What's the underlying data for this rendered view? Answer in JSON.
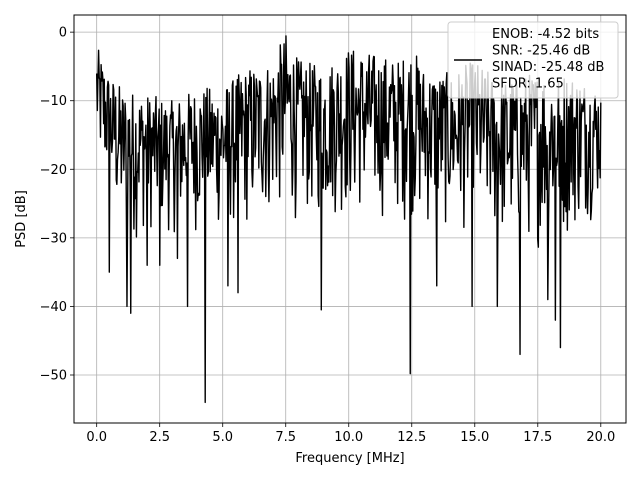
{
  "chart_data": {
    "type": "line",
    "title": "",
    "xlabel": "Frequency [MHz]",
    "ylabel": "PSD [dB]",
    "xlim": [
      -0.9,
      21.0
    ],
    "ylim": [
      -57,
      2.5
    ],
    "grid": true,
    "xticks": [
      0.0,
      2.5,
      5.0,
      7.5,
      10.0,
      12.5,
      15.0,
      17.5,
      20.0
    ],
    "xtick_labels": [
      "0.0",
      "2.5",
      "5.0",
      "7.5",
      "10.0",
      "12.5",
      "15.0",
      "17.5",
      "20.0"
    ],
    "yticks": [
      0,
      -10,
      -20,
      -30,
      -40,
      -50
    ],
    "ytick_labels": [
      "0",
      "−10",
      "−20",
      "−30",
      "−40",
      "−50"
    ],
    "series": [
      {
        "color": "#000000",
        "x_range": [
          0.0,
          20.0
        ],
        "n_points": 800,
        "upper_envelope": [
          [
            0.0,
            -2
          ],
          [
            0.5,
            -6
          ],
          [
            1.0,
            -8
          ],
          [
            2.0,
            -9
          ],
          [
            3.0,
            -10
          ],
          [
            4.0,
            -8
          ],
          [
            5.0,
            -8
          ],
          [
            6.0,
            -5
          ],
          [
            7.0,
            -4
          ],
          [
            7.5,
            0
          ],
          [
            8.0,
            -4
          ],
          [
            9.0,
            -5
          ],
          [
            10.0,
            -2
          ],
          [
            11.0,
            -3
          ],
          [
            12.0,
            -4
          ],
          [
            12.5,
            -2
          ],
          [
            13.0,
            -5
          ],
          [
            14.0,
            -6
          ],
          [
            15.0,
            -4
          ],
          [
            16.0,
            -7
          ],
          [
            17.0,
            -6
          ],
          [
            18.0,
            -5
          ],
          [
            19.0,
            -6
          ],
          [
            20.0,
            -8
          ]
        ],
        "lower_envelope": [
          [
            0.0,
            -20
          ],
          [
            1.0,
            -32
          ],
          [
            2.0,
            -30
          ],
          [
            3.0,
            -30
          ],
          [
            4.0,
            -30
          ],
          [
            5.0,
            -30
          ],
          [
            6.0,
            -30
          ],
          [
            7.0,
            -28
          ],
          [
            8.0,
            -28
          ],
          [
            9.0,
            -28
          ],
          [
            10.0,
            -28
          ],
          [
            11.0,
            -28
          ],
          [
            12.0,
            -28
          ],
          [
            13.0,
            -30
          ],
          [
            14.0,
            -30
          ],
          [
            15.0,
            -30
          ],
          [
            16.0,
            -32
          ],
          [
            17.0,
            -32
          ],
          [
            18.0,
            -32
          ],
          [
            19.0,
            -30
          ],
          [
            20.0,
            -26
          ]
        ],
        "deep_dips": [
          [
            0.5,
            -35
          ],
          [
            1.2,
            -40
          ],
          [
            1.35,
            -41
          ],
          [
            2.0,
            -34
          ],
          [
            2.5,
            -34
          ],
          [
            3.2,
            -33
          ],
          [
            3.6,
            -40
          ],
          [
            4.3,
            -54
          ],
          [
            5.2,
            -37
          ],
          [
            5.6,
            -38
          ],
          [
            8.9,
            -40.5
          ],
          [
            12.45,
            -49.8
          ],
          [
            13.5,
            -37
          ],
          [
            14.9,
            -40
          ],
          [
            15.9,
            -40
          ],
          [
            16.8,
            -47
          ],
          [
            17.9,
            -39
          ],
          [
            18.4,
            -46
          ],
          [
            18.2,
            -42
          ]
        ]
      }
    ],
    "legend": {
      "position": "upper right",
      "lines": [
        "ENOB: -4.52 bits",
        "SNR: -25.46 dB",
        "SINAD: -25.48 dB",
        "SFDR: 1.65"
      ]
    }
  }
}
